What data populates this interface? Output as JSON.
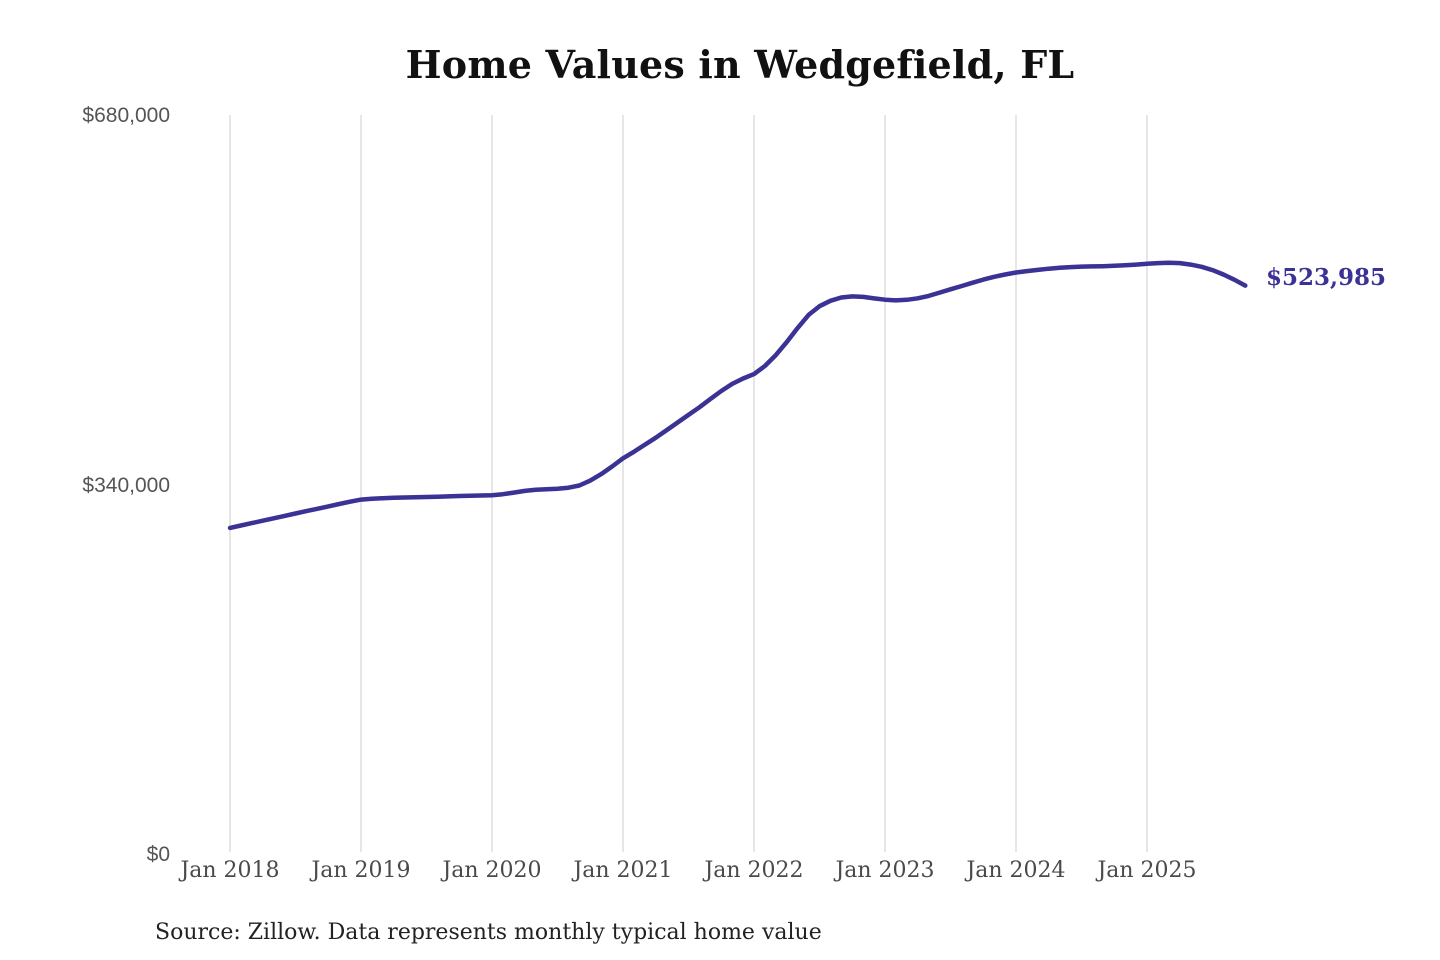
{
  "chart_data": {
    "type": "line",
    "title": "Home Values in Wedgefield, FL",
    "source": "Source: Zillow. Data represents monthly typical home value",
    "xlabel": "",
    "ylabel": "",
    "ylim": [
      0,
      680000
    ],
    "grid": "vertical-only",
    "legend": null,
    "line_color": "#3b3295",
    "grid_color": "#cccccc",
    "final_value": 523985,
    "final_value_label": "$523,985",
    "y_ticks": [
      {
        "value": 0,
        "label": "$0"
      },
      {
        "value": 340000,
        "label": "$340,000"
      },
      {
        "value": 680000,
        "label": "$680,000"
      }
    ],
    "x_ticks": [
      {
        "month_index": 0,
        "label": "Jan 2018"
      },
      {
        "month_index": 12,
        "label": "Jan 2019"
      },
      {
        "month_index": 24,
        "label": "Jan 2020"
      },
      {
        "month_index": 36,
        "label": "Jan 2021"
      },
      {
        "month_index": 48,
        "label": "Jan 2022"
      },
      {
        "month_index": 60,
        "label": "Jan 2023"
      },
      {
        "month_index": 72,
        "label": "Jan 2024"
      },
      {
        "month_index": 84,
        "label": "Jan 2025"
      }
    ],
    "x": [
      "2018-01",
      "2018-02",
      "2018-03",
      "2018-04",
      "2018-05",
      "2018-06",
      "2018-07",
      "2018-08",
      "2018-09",
      "2018-10",
      "2018-11",
      "2018-12",
      "2019-01",
      "2019-02",
      "2019-03",
      "2019-04",
      "2019-05",
      "2019-06",
      "2019-07",
      "2019-08",
      "2019-09",
      "2019-10",
      "2019-11",
      "2019-12",
      "2020-01",
      "2020-02",
      "2020-03",
      "2020-04",
      "2020-05",
      "2020-06",
      "2020-07",
      "2020-08",
      "2020-09",
      "2020-10",
      "2020-11",
      "2020-12",
      "2021-01",
      "2021-02",
      "2021-03",
      "2021-04",
      "2021-05",
      "2021-06",
      "2021-07",
      "2021-08",
      "2021-09",
      "2021-10",
      "2021-11",
      "2021-12",
      "2022-01",
      "2022-02",
      "2022-03",
      "2022-04",
      "2022-05",
      "2022-06",
      "2022-07",
      "2022-08",
      "2022-09",
      "2022-10",
      "2022-11",
      "2022-12",
      "2023-01",
      "2023-02",
      "2023-03",
      "2023-04",
      "2023-05",
      "2023-06",
      "2023-07",
      "2023-08",
      "2023-09",
      "2023-10",
      "2023-11",
      "2023-12",
      "2024-01",
      "2024-02",
      "2024-03",
      "2024-04",
      "2024-05",
      "2024-06",
      "2024-07",
      "2024-08",
      "2024-09",
      "2024-10",
      "2024-11",
      "2024-12",
      "2025-01",
      "2025-02",
      "2025-03",
      "2025-04",
      "2025-05",
      "2025-06",
      "2025-07",
      "2025-08",
      "2025-09",
      "2025-10"
    ],
    "values": [
      301000,
      303200,
      305400,
      307600,
      309800,
      312000,
      314200,
      316400,
      318600,
      320800,
      323000,
      325100,
      327000,
      327800,
      328300,
      328700,
      329000,
      329200,
      329400,
      329700,
      330000,
      330300,
      330600,
      330800,
      331000,
      332000,
      333500,
      335000,
      336000,
      336500,
      337000,
      338000,
      340000,
      344500,
      350500,
      357500,
      365000,
      371000,
      377500,
      384000,
      391000,
      398000,
      405000,
      412000,
      419500,
      427000,
      433500,
      438500,
      442500,
      450000,
      460000,
      472000,
      485000,
      497000,
      505000,
      510000,
      513000,
      514000,
      513500,
      512200,
      511000,
      510300,
      510900,
      512300,
      514500,
      517500,
      520500,
      523500,
      526500,
      529500,
      532000,
      534200,
      536000,
      537300,
      538400,
      539500,
      540300,
      541000,
      541400,
      541600,
      541800,
      542200,
      542700,
      543300,
      544000,
      544600,
      545000,
      544600,
      543300,
      541200,
      538200,
      534200,
      529400,
      523985
    ]
  }
}
